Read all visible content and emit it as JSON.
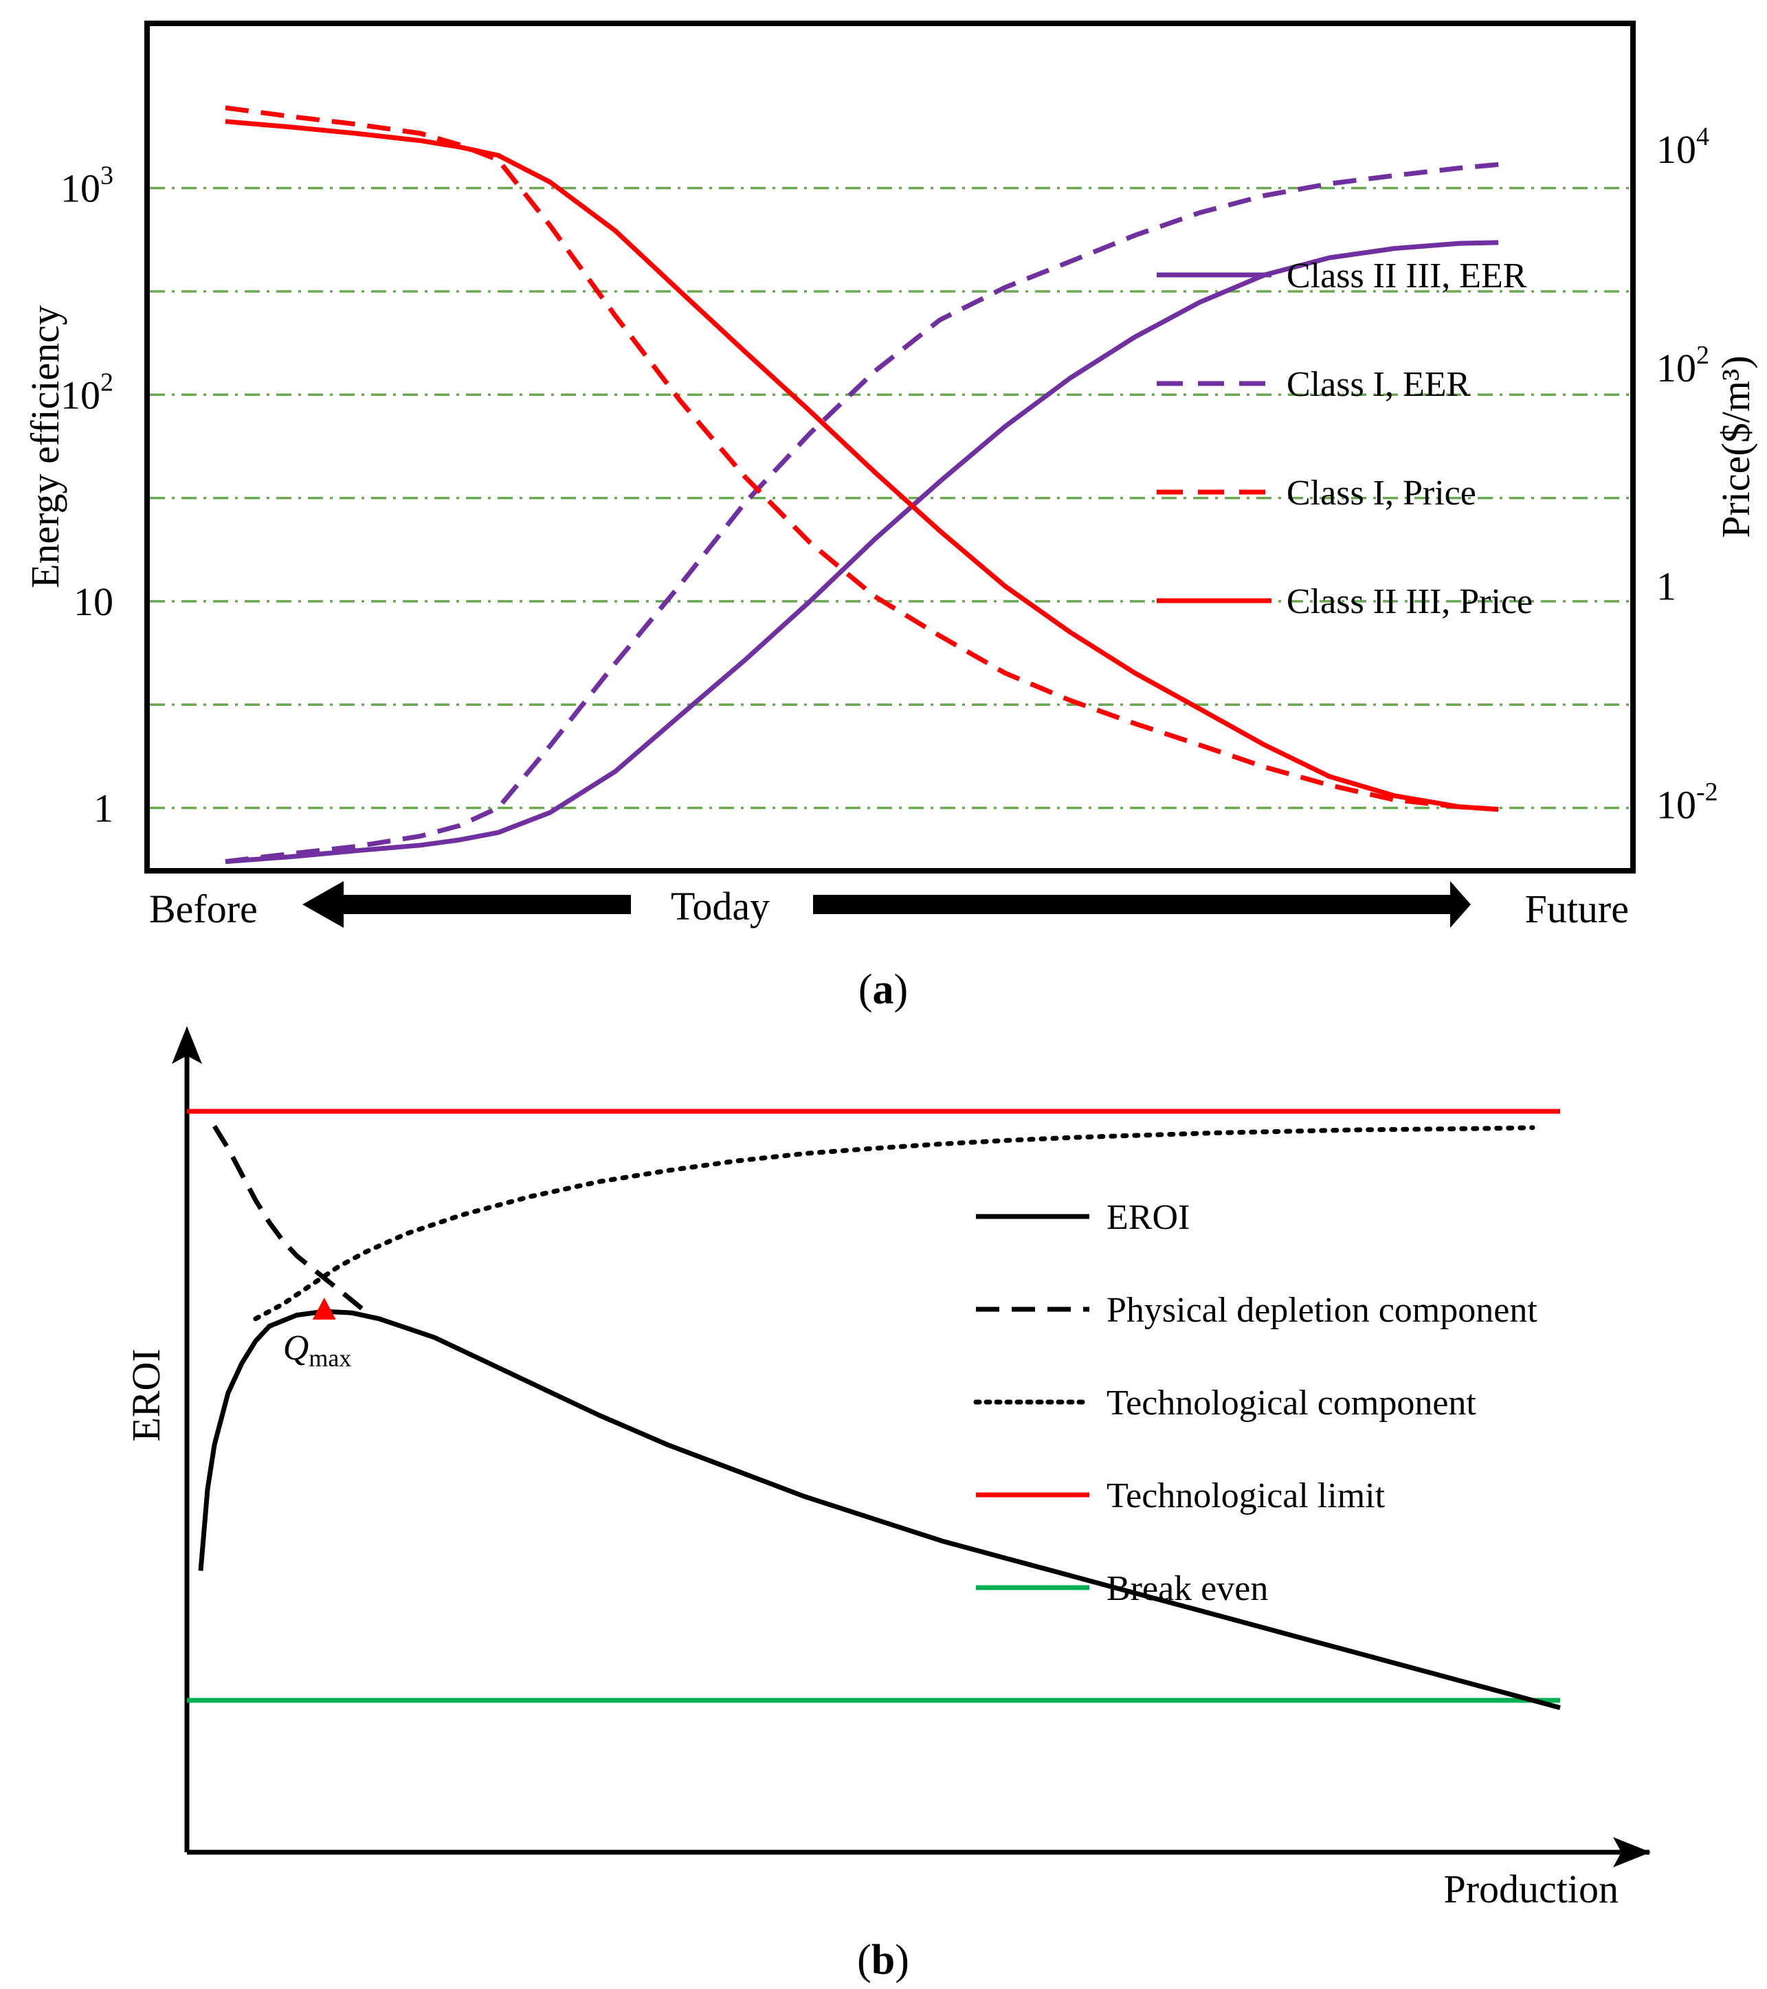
{
  "chart_data": [
    {
      "id": "a",
      "panel_label": "(a)",
      "panel_letter": "a",
      "type": "line",
      "ylabel": "Energy efficiency",
      "y2label": "Price($/m³)",
      "y_scale": "log",
      "ylim": [
        0.5,
        2500
      ],
      "y_ticks": [
        {
          "value": 1000,
          "label": "10³"
        },
        {
          "value": 100,
          "label": "10²"
        },
        {
          "value": 10,
          "label": "10"
        },
        {
          "value": 1,
          "label": "1"
        }
      ],
      "y2_scale": "log",
      "y2_ticks": [
        {
          "value": 10000,
          "label": "10⁴"
        },
        {
          "value": 100,
          "label": "10²"
        },
        {
          "value": 1,
          "label": "1"
        },
        {
          "value": 0.01,
          "label": "10⁻²"
        }
      ],
      "grid": "horizontal dash-dot",
      "grid_color": "#6aa84f",
      "xlim": [
        0,
        100
      ],
      "x_labels": {
        "left": "Before",
        "center": "Today",
        "right": "Future"
      },
      "arrow_color": "#b00000",
      "legend_position": "right",
      "series": [
        {
          "name": "Class II III, EER",
          "color": "#7030a0",
          "style": "solid",
          "axis": "left",
          "x": [
            0,
            5,
            10,
            15,
            18,
            21,
            25,
            30,
            35,
            40,
            45,
            50,
            55,
            60,
            65,
            70,
            75,
            80,
            85,
            90,
            95,
            98
          ],
          "y": [
            0.55,
            0.58,
            0.62,
            0.66,
            0.7,
            0.76,
            0.95,
            1.5,
            2.8,
            5.2,
            10,
            20,
            38,
            70,
            120,
            190,
            280,
            380,
            460,
            510,
            540,
            545
          ]
        },
        {
          "name": "Class I, EER",
          "color": "#7030a0",
          "style": "dashed",
          "axis": "left",
          "x": [
            0,
            5,
            10,
            15,
            18,
            21,
            25,
            30,
            35,
            40,
            45,
            50,
            55,
            60,
            65,
            70,
            75,
            80,
            85,
            90,
            95,
            98
          ],
          "y": [
            0.55,
            0.6,
            0.65,
            0.73,
            0.82,
            1.0,
            2.0,
            5.0,
            12,
            30,
            65,
            130,
            230,
            330,
            440,
            590,
            760,
            920,
            1050,
            1150,
            1250,
            1300
          ]
        },
        {
          "name": "Class I, Price",
          "color": "#ff0000",
          "style": "dashed",
          "axis": "right",
          "x": [
            0,
            5,
            10,
            15,
            18,
            21,
            25,
            30,
            35,
            40,
            45,
            50,
            55,
            60,
            65,
            70,
            75,
            80,
            85,
            90,
            95,
            98
          ],
          "y": [
            24000,
            20000,
            17000,
            14000,
            11000,
            8000,
            2000,
            300,
            50,
            10,
            2.5,
            0.8,
            0.35,
            0.16,
            0.09,
            0.055,
            0.035,
            0.022,
            0.015,
            0.011,
            0.0095,
            0.009
          ]
        },
        {
          "name": "Class II III, Price",
          "color": "#ff0000",
          "style": "solid",
          "axis": "right",
          "x": [
            0,
            5,
            10,
            15,
            18,
            21,
            25,
            30,
            35,
            40,
            45,
            50,
            55,
            60,
            65,
            70,
            75,
            80,
            85,
            90,
            95,
            98
          ],
          "y": [
            18000,
            16000,
            14000,
            12000,
            10500,
            8800,
            5000,
            1800,
            500,
            140,
            40,
            11,
            3.2,
            1.0,
            0.38,
            0.16,
            0.075,
            0.035,
            0.018,
            0.012,
            0.0095,
            0.009
          ]
        }
      ]
    },
    {
      "id": "b",
      "panel_label": "(b)",
      "panel_letter": "b",
      "type": "line",
      "ylabel": "EROI",
      "xlabel": "Production",
      "xlim": [
        0,
        100
      ],
      "ylim": [
        0,
        100
      ],
      "legend_position": "right",
      "annotation": {
        "label": "Q",
        "subscript": "max",
        "x": 10,
        "y": 73,
        "color": "#ff0000"
      },
      "series": [
        {
          "name": "EROI",
          "color": "#000000",
          "style": "solid",
          "x": [
            1,
            1.5,
            2,
            3,
            4,
            5,
            6,
            8,
            10,
            12,
            14,
            18,
            22,
            26,
            30,
            35,
            40,
            45,
            50,
            55,
            60,
            65,
            70,
            75,
            80,
            85,
            90,
            95,
            100
          ],
          "y": [
            38,
            49,
            55,
            62,
            66,
            69,
            71,
            72.5,
            73,
            72.8,
            72,
            69.5,
            66,
            62.5,
            59,
            55,
            51.5,
            48,
            45,
            42,
            39.5,
            37,
            34.5,
            32,
            29.5,
            27,
            24.5,
            22,
            19.5
          ]
        },
        {
          "name": "Physical depletion component",
          "color": "#000000",
          "style": "dashed",
          "x": [
            2,
            3,
            4,
            5,
            6,
            7,
            8,
            9,
            10,
            11,
            12,
            13
          ],
          "y": [
            98,
            95,
            91.5,
            88,
            85,
            82.5,
            80.5,
            79,
            77.5,
            76,
            74.5,
            73
          ]
        },
        {
          "name": "Technological component",
          "color": "#000000",
          "style": "dotted",
          "x": [
            5,
            7,
            9,
            11,
            13,
            16,
            20,
            25,
            30,
            35,
            40,
            45,
            50,
            55,
            60,
            65,
            70,
            75,
            80,
            85,
            90,
            95,
            98
          ],
          "y": [
            72,
            74,
            76.5,
            79,
            81,
            83.5,
            86,
            88.5,
            90.5,
            92,
            93.3,
            94.3,
            95,
            95.6,
            96.1,
            96.5,
            96.8,
            97.1,
            97.3,
            97.5,
            97.6,
            97.7,
            97.8
          ]
        },
        {
          "name": "Technological limit",
          "color": "#ff0000",
          "style": "solid",
          "x": [
            0,
            100
          ],
          "y": [
            100,
            100
          ]
        },
        {
          "name": "Break even",
          "color": "#00b050",
          "style": "solid",
          "x": [
            0,
            100
          ],
          "y": [
            20.5,
            20.5
          ]
        }
      ]
    }
  ]
}
